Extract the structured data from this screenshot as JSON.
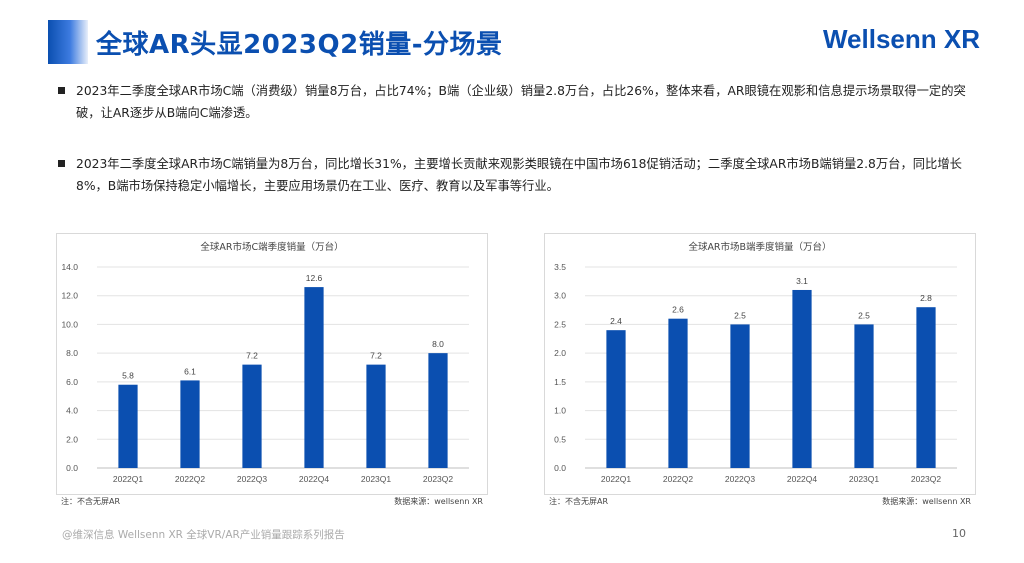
{
  "header": {
    "title": "全球AR头显2023Q2销量-分场景",
    "logo": "Wellsenn XR"
  },
  "bullets": [
    "2023年二季度全球AR市场C端（消费级）销量8万台，占比74%；B端（企业级）销量2.8万台，占比26%，整体来看，AR眼镜在观影和信息提示场景取得一定的突破，让AR逐步从B端向C端渗透。",
    "2023年二季度全球AR市场C端销量为8万台，同比增长31%，主要增长贡献来观影类眼镜在中国市场618促销活动；二季度全球AR市场B端销量2.8万台，同比增长8%，B端市场保持稳定小幅增长，主要应用场景仍在工业、医疗、教育以及军事等行业。"
  ],
  "chart_data": [
    {
      "type": "bar",
      "title": "全球AR市场C端季度销量（万台）",
      "categories": [
        "2022Q1",
        "2022Q2",
        "2022Q3",
        "2022Q4",
        "2023Q1",
        "2023Q2"
      ],
      "values": [
        5.8,
        6.1,
        7.2,
        12.6,
        7.2,
        8.0
      ],
      "value_labels": [
        "5.8",
        "6.1",
        "7.2",
        "12.6",
        "7.2",
        "8.0"
      ],
      "ylim": [
        0,
        14
      ],
      "yticks": [
        "0.0",
        "2.0",
        "4.0",
        "6.0",
        "8.0",
        "10.0",
        "12.0",
        "14.0"
      ],
      "grid": true,
      "color": "#0b4fb0",
      "note": "注：不含无屏AR",
      "source": "数据来源：wellsenn XR"
    },
    {
      "type": "bar",
      "title": "全球AR市场B端季度销量（万台）",
      "categories": [
        "2022Q1",
        "2022Q2",
        "2022Q3",
        "2022Q4",
        "2023Q1",
        "2023Q2"
      ],
      "values": [
        2.4,
        2.6,
        2.5,
        3.1,
        2.5,
        2.8
      ],
      "value_labels": [
        "2.4",
        "2.6",
        "2.5",
        "3.1",
        "2.5",
        "2.8"
      ],
      "ylim": [
        0,
        3.5
      ],
      "yticks": [
        "0.0",
        "0.5",
        "1.0",
        "1.5",
        "2.0",
        "2.5",
        "3.0",
        "3.5"
      ],
      "grid": true,
      "color": "#0b4fb0",
      "note": "注：不含无屏AR",
      "source": "数据来源：wellsenn XR"
    }
  ],
  "footer": {
    "text": "@维深信息 Wellsenn XR 全球VR/AR产业销量跟踪系列报告",
    "page": "10"
  }
}
